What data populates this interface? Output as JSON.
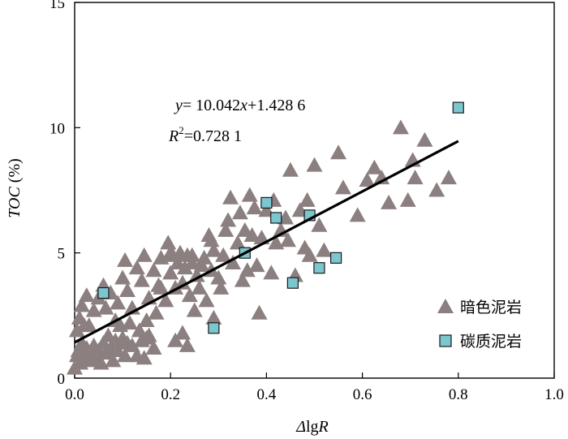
{
  "chart_data": {
    "type": "scatter",
    "xlabel_prefix": "Δ",
    "xlabel_main": "lg",
    "xlabel_suffix": "R",
    "ylabel_italic": "TOC",
    "ylabel_unit": " (%)",
    "xlim": [
      0,
      1.0
    ],
    "ylim": [
      0,
      15
    ],
    "xticks": [
      0.0,
      0.2,
      0.4,
      0.6,
      0.8,
      1.0
    ],
    "xtick_labels": [
      "0.0",
      "0.2",
      "0.4",
      "0.6",
      "0.8",
      "1.0"
    ],
    "yticks": [
      0,
      5,
      10,
      15
    ],
    "ytick_labels": [
      "0",
      "5",
      "10",
      "15"
    ],
    "grid": false,
    "legend_position": "bottom-right",
    "regression": {
      "slope": 10.042,
      "intercept": 1.4286,
      "x_range": [
        0,
        0.8
      ],
      "eq_y": "y",
      "eq_mid": "= 10.042",
      "eq_x": "x",
      "eq_tail": "+1.428 6",
      "r2_r": "R",
      "r2_sup": "2",
      "r2_tail": "=0.728 1"
    },
    "series": [
      {
        "name": "暗色泥岩",
        "marker": "triangle",
        "color": "#8b7f80",
        "points": [
          [
            0.0,
            0.4
          ],
          [
            0.005,
            0.9
          ],
          [
            0.008,
            1.1
          ],
          [
            0.012,
            0.6
          ],
          [
            0.015,
            1.4
          ],
          [
            0.02,
            0.9
          ],
          [
            0.02,
            2.1
          ],
          [
            0.025,
            1.2
          ],
          [
            0.03,
            0.7
          ],
          [
            0.035,
            1.0
          ],
          [
            0.04,
            1.3
          ],
          [
            0.045,
            0.8
          ],
          [
            0.05,
            1.1
          ],
          [
            0.055,
            0.6
          ],
          [
            0.06,
            1.4
          ],
          [
            0.065,
            1.0
          ],
          [
            0.07,
            1.7
          ],
          [
            0.075,
            1.2
          ],
          [
            0.08,
            0.7
          ],
          [
            0.085,
            1.5
          ],
          [
            0.09,
            1.1
          ],
          [
            0.095,
            2.1
          ],
          [
            0.1,
            1.6
          ],
          [
            0.105,
            0.9
          ],
          [
            0.11,
            1.4
          ],
          [
            0.115,
            2.2
          ],
          [
            0.12,
            1.3
          ],
          [
            0.13,
            0.9
          ],
          [
            0.135,
            1.9
          ],
          [
            0.14,
            1.5
          ],
          [
            0.145,
            0.8
          ],
          [
            0.15,
            2.3
          ],
          [
            0.155,
            1.7
          ],
          [
            0.165,
            1.2
          ],
          [
            0.17,
            2.6
          ],
          [
            0.005,
            1.9
          ],
          [
            0.01,
            2.4
          ],
          [
            0.015,
            2.9
          ],
          [
            0.025,
            3.3
          ],
          [
            0.03,
            2.1
          ],
          [
            0.04,
            2.7
          ],
          [
            0.05,
            3.2
          ],
          [
            0.06,
            3.7
          ],
          [
            0.065,
            2.8
          ],
          [
            0.075,
            3.4
          ],
          [
            0.085,
            2.3
          ],
          [
            0.09,
            3.0
          ],
          [
            0.1,
            4.0
          ],
          [
            0.105,
            4.7
          ],
          [
            0.11,
            3.5
          ],
          [
            0.12,
            2.8
          ],
          [
            0.13,
            4.4
          ],
          [
            0.14,
            3.9
          ],
          [
            0.145,
            4.9
          ],
          [
            0.155,
            3.2
          ],
          [
            0.165,
            4.3
          ],
          [
            0.175,
            3.7
          ],
          [
            0.18,
            4.8
          ],
          [
            0.19,
            3.1
          ],
          [
            0.195,
            5.4
          ],
          [
            0.2,
            4.2
          ],
          [
            0.205,
            4.9
          ],
          [
            0.21,
            3.6
          ],
          [
            0.215,
            4.6
          ],
          [
            0.22,
            5.0
          ],
          [
            0.225,
            3.8
          ],
          [
            0.23,
            4.4
          ],
          [
            0.235,
            4.9
          ],
          [
            0.24,
            3.3
          ],
          [
            0.245,
            4.6
          ],
          [
            0.25,
            2.7
          ],
          [
            0.255,
            4.1
          ],
          [
            0.26,
            3.6
          ],
          [
            0.27,
            4.8
          ],
          [
            0.275,
            3.1
          ],
          [
            0.28,
            5.7
          ],
          [
            0.285,
            4.3
          ],
          [
            0.29,
            5.1
          ],
          [
            0.3,
            4.0
          ],
          [
            0.305,
            3.6
          ],
          [
            0.31,
            4.9
          ],
          [
            0.315,
            5.9
          ],
          [
            0.32,
            6.3
          ],
          [
            0.325,
            7.2
          ],
          [
            0.33,
            4.6
          ],
          [
            0.34,
            5.4
          ],
          [
            0.345,
            6.6
          ],
          [
            0.35,
            3.9
          ],
          [
            0.355,
            5.9
          ],
          [
            0.36,
            4.3
          ],
          [
            0.365,
            7.3
          ],
          [
            0.37,
            5.7
          ],
          [
            0.375,
            6.8
          ],
          [
            0.38,
            4.5
          ],
          [
            0.385,
            2.6
          ],
          [
            0.39,
            5.6
          ],
          [
            0.4,
            6.7
          ],
          [
            0.41,
            4.2
          ],
          [
            0.415,
            7.1
          ],
          [
            0.42,
            5.4
          ],
          [
            0.43,
            5.9
          ],
          [
            0.44,
            6.4
          ],
          [
            0.445,
            5.5
          ],
          [
            0.45,
            8.3
          ],
          [
            0.46,
            4.1
          ],
          [
            0.47,
            6.7
          ],
          [
            0.48,
            5.2
          ],
          [
            0.485,
            7.1
          ],
          [
            0.49,
            4.9
          ],
          [
            0.5,
            8.5
          ],
          [
            0.51,
            6.1
          ],
          [
            0.52,
            5.1
          ],
          [
            0.55,
            9.0
          ],
          [
            0.56,
            7.6
          ],
          [
            0.59,
            6.5
          ],
          [
            0.61,
            7.9
          ],
          [
            0.625,
            8.4
          ],
          [
            0.64,
            8.0
          ],
          [
            0.655,
            7.0
          ],
          [
            0.68,
            10.0
          ],
          [
            0.695,
            7.1
          ],
          [
            0.705,
            8.7
          ],
          [
            0.71,
            8.0
          ],
          [
            0.73,
            9.5
          ],
          [
            0.755,
            7.5
          ],
          [
            0.78,
            8.0
          ],
          [
            0.15,
            1.6
          ],
          [
            0.21,
            1.5
          ],
          [
            0.225,
            1.8
          ],
          [
            0.235,
            1.3
          ],
          [
            0.29,
            2.4
          ],
          [
            0.18,
            3.6
          ],
          [
            0.2,
            5.0
          ],
          [
            0.245,
            4.9
          ],
          [
            0.265,
            4.5
          ],
          [
            0.285,
            5.5
          ]
        ]
      },
      {
        "name": "碳质泥岩",
        "marker": "square",
        "color": "#7cc6cf",
        "points": [
          [
            0.06,
            3.4
          ],
          [
            0.29,
            2.0
          ],
          [
            0.355,
            5.0
          ],
          [
            0.4,
            7.0
          ],
          [
            0.42,
            6.4
          ],
          [
            0.455,
            3.8
          ],
          [
            0.49,
            6.5
          ],
          [
            0.51,
            4.4
          ],
          [
            0.545,
            4.8
          ],
          [
            0.8,
            10.8
          ]
        ]
      }
    ]
  }
}
